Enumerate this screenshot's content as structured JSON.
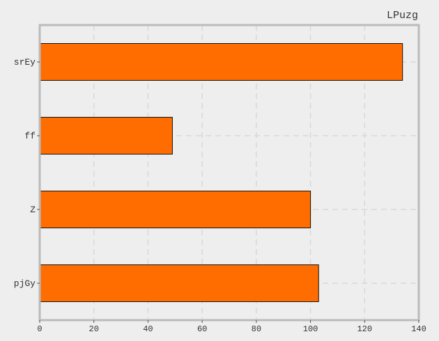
{
  "chart_data": {
    "type": "bar",
    "orientation": "horizontal",
    "title": "LPuzg",
    "xlabel": "",
    "ylabel": "",
    "categories": [
      "srEy",
      "ff",
      "Z",
      "pjGy"
    ],
    "values": [
      134,
      49,
      100,
      103
    ],
    "xlim": [
      0,
      140
    ],
    "xticks": [
      0,
      20,
      40,
      60,
      80,
      100,
      120,
      140
    ],
    "grid": true,
    "legend": "none",
    "colors": {
      "bar": "#ff6c00",
      "bar_edge": "#111111",
      "background": "#eeeeee",
      "frame": "#bbbbbb",
      "grid": "#d8d8d8"
    }
  }
}
